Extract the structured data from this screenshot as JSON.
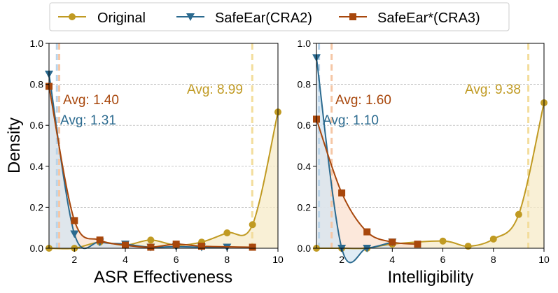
{
  "legend": {
    "entries": [
      {
        "name": "Original",
        "color": "#c09a22",
        "marker": "circle"
      },
      {
        "name": "SafeEar(CRA2)",
        "color": "#2b6a8f",
        "marker": "triangle-down"
      },
      {
        "name": "SafeEar*(CRA3)",
        "color": "#a8470c",
        "marker": "square"
      }
    ]
  },
  "colors": {
    "original": "#c09a22",
    "cra2": "#2b6a8f",
    "cra3": "#a8470c",
    "fill_original": "#f7ebc8",
    "fill_cra2": "#d6e6f2",
    "fill_cra3": "#fbe0cf",
    "vline_original": "#f3dd9c",
    "vline_cra2": "#b9d4ea",
    "vline_cra3": "#f5c7a6",
    "grid": "#aaaaaa"
  },
  "chart_data": [
    {
      "type": "line",
      "xlabel": "ASR Effectiveness",
      "ylabel": "Density",
      "xlim": [
        1,
        10
      ],
      "ylim": [
        0,
        1.0
      ],
      "xticks": [
        2,
        4,
        6,
        8,
        10
      ],
      "xtick_labels": [
        "2",
        "4",
        "6",
        "8",
        "10"
      ],
      "yticks": [
        0.0,
        0.2,
        0.4,
        0.6,
        0.8,
        1.0
      ],
      "ytick_labels": [
        "0.0",
        "0.2",
        "0.4",
        "0.6",
        "0.8",
        "1.0"
      ],
      "series": [
        {
          "name": "Original",
          "key": "original",
          "marker": "circle",
          "x": [
            1,
            2,
            3,
            4,
            5,
            6,
            7,
            8,
            9,
            10
          ],
          "y": [
            0.0,
            0.0,
            0.03,
            0.015,
            0.04,
            0.015,
            0.03,
            0.075,
            0.115,
            0.665
          ],
          "avg": 8.99,
          "avg_label": "Avg: 8.99"
        },
        {
          "name": "SafeEar(CRA2)",
          "key": "cra2",
          "marker": "triangle-down",
          "x": [
            1,
            2,
            3,
            4,
            5,
            6,
            7,
            8
          ],
          "y": [
            0.85,
            0.07,
            0.03,
            0.02,
            0.005,
            0.008,
            0.005,
            0.005
          ],
          "avg": 1.31,
          "avg_label": "Avg: 1.31"
        },
        {
          "name": "SafeEar*(CRA3)",
          "key": "cra3",
          "marker": "square",
          "x": [
            1,
            2,
            3,
            4,
            5,
            6,
            7,
            9
          ],
          "y": [
            0.79,
            0.135,
            0.04,
            0.015,
            0.005,
            0.02,
            0.01,
            0.005
          ],
          "avg": 1.4,
          "avg_label": "Avg: 1.40"
        }
      ]
    },
    {
      "type": "line",
      "xlabel": "Intelligibility",
      "ylabel": "",
      "xlim": [
        1,
        10
      ],
      "ylim": [
        0,
        1.0
      ],
      "xticks": [
        2,
        4,
        6,
        8,
        10
      ],
      "xtick_labels": [
        "2",
        "4",
        "6",
        "8",
        "10"
      ],
      "yticks": [
        0.0,
        0.2,
        0.4,
        0.6,
        0.8,
        1.0
      ],
      "ytick_labels": [
        "0.0",
        "0.2",
        "0.4",
        "0.6",
        "0.8",
        "1.0"
      ],
      "series": [
        {
          "name": "Original",
          "key": "original",
          "marker": "circle",
          "x": [
            1,
            2,
            3,
            4,
            6,
            7,
            8,
            9,
            10
          ],
          "y": [
            0.0,
            0.0,
            0.0,
            0.02,
            0.035,
            0.01,
            0.045,
            0.165,
            0.71
          ],
          "avg": 9.38,
          "avg_label": "Avg: 9.38"
        },
        {
          "name": "SafeEar(CRA2)",
          "key": "cra2",
          "marker": "triangle-down",
          "x": [
            1,
            2,
            3,
            4
          ],
          "y": [
            0.93,
            0.0,
            0.0,
            0.03
          ],
          "avg": 1.1,
          "avg_label": "Avg: 1.10"
        },
        {
          "name": "SafeEar*(CRA3)",
          "key": "cra3",
          "marker": "square",
          "x": [
            1,
            2,
            3,
            4,
            5
          ],
          "y": [
            0.63,
            0.27,
            0.08,
            0.03,
            0.02
          ],
          "avg": 1.6,
          "avg_label": "Avg: 1.60"
        }
      ]
    }
  ]
}
